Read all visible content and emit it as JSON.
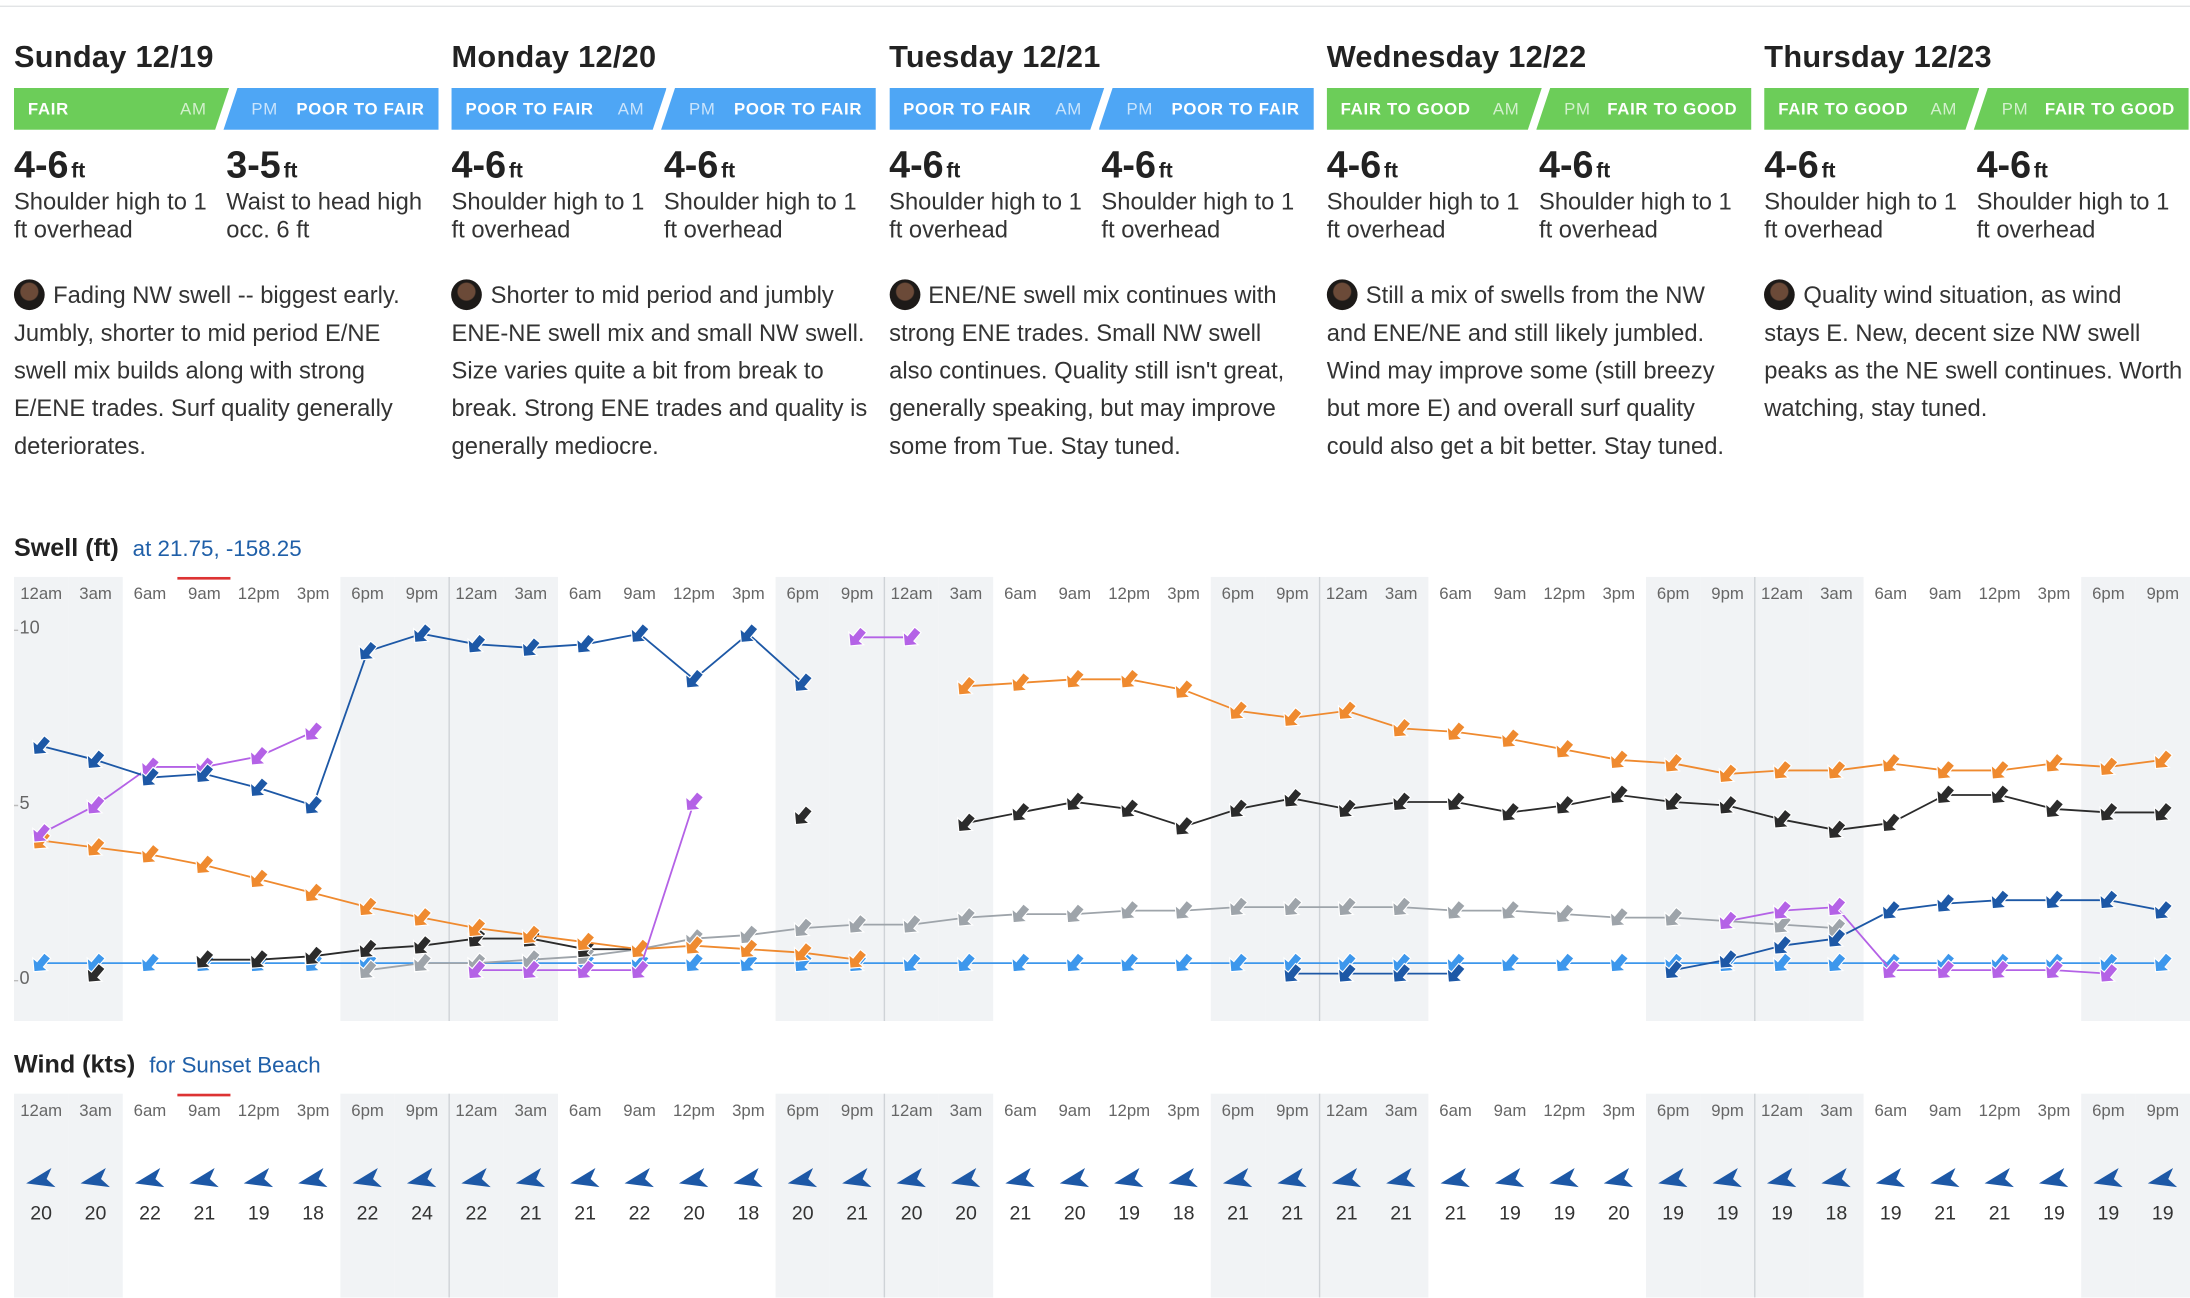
{
  "am_label": "AM",
  "pm_label": "PM",
  "unit": "ft",
  "days": [
    {
      "title": "Sunday 12/19",
      "am_rating": "FAIR",
      "am_color": "#6ccd59",
      "pm_rating": "POOR TO FAIR",
      "pm_color": "#4ea6f5",
      "am_height": "4-6",
      "am_desc": "Shoulder high to 1 ft overhead",
      "pm_height": "3-5",
      "pm_desc": "Waist to head high occ. 6 ft",
      "forecast": "Fading NW swell -- biggest early. Jumbly, shorter to mid period E/NE swell mix builds along with strong E/ENE trades. Surf quality generally deteriorates."
    },
    {
      "title": "Monday 12/20",
      "am_rating": "POOR TO FAIR",
      "am_color": "#4ea6f5",
      "pm_rating": "POOR TO FAIR",
      "pm_color": "#4ea6f5",
      "am_height": "4-6",
      "am_desc": "Shoulder high to 1 ft overhead",
      "pm_height": "4-6",
      "pm_desc": "Shoulder high to 1 ft overhead",
      "forecast": "Shorter to mid period and jumbly ENE-NE swell mix and small NW swell. Size varies quite a bit from break to break. Strong ENE trades and quality is generally mediocre."
    },
    {
      "title": "Tuesday 12/21",
      "am_rating": "POOR TO FAIR",
      "am_color": "#4ea6f5",
      "pm_rating": "POOR TO FAIR",
      "pm_color": "#4ea6f5",
      "am_height": "4-6",
      "am_desc": "Shoulder high to 1 ft overhead",
      "pm_height": "4-6",
      "pm_desc": "Shoulder high to 1 ft overhead",
      "forecast": "ENE/NE swell mix continues with strong ENE trades. Small NW swell also continues. Quality still isn't great, generally speaking, but may improve some from Tue. Stay tuned."
    },
    {
      "title": "Wednesday 12/22",
      "am_rating": "FAIR TO GOOD",
      "am_color": "#6ccd59",
      "pm_rating": "FAIR TO GOOD",
      "pm_color": "#6ccd59",
      "am_height": "4-6",
      "am_desc": "Shoulder high to 1 ft overhead",
      "pm_height": "4-6",
      "pm_desc": "Shoulder high to 1 ft overhead",
      "forecast": "Still a mix of swells from the NW and ENE/NE and still likely jumbled. Wind may improve some (still breezy but more E) and overall surf quality could also get a bit better. Stay tuned."
    },
    {
      "title": "Thursday 12/23",
      "am_rating": "FAIR TO GOOD",
      "am_color": "#6ccd59",
      "pm_rating": "FAIR TO GOOD",
      "pm_color": "#6ccd59",
      "am_height": "4-6",
      "am_desc": "Shoulder high to 1 ft overhead",
      "pm_height": "4-6",
      "pm_desc": "Shoulder high to 1 ft overhead",
      "forecast": "Quality wind situation, as wind stays E. New, decent size NW swell peaks as the NE swell continues. Worth watching, stay tuned."
    }
  ],
  "chart_data": [
    {
      "type": "line",
      "title": "Swell (ft)",
      "subtitle": "at 21.75, -158.25",
      "categories": [
        "12am",
        "3am",
        "6am",
        "9am",
        "12pm",
        "3pm",
        "6pm",
        "9pm",
        "12am",
        "3am",
        "6am",
        "9am",
        "12pm",
        "3pm",
        "6pm",
        "9pm",
        "12am",
        "3am",
        "6am",
        "9am",
        "12pm",
        "3pm",
        "6pm",
        "9pm",
        "12am",
        "3am",
        "6am",
        "9am",
        "12pm",
        "3pm",
        "6pm",
        "9pm",
        "12am",
        "3am",
        "6am",
        "9am",
        "12pm",
        "3pm",
        "6pm",
        "9pm"
      ],
      "ylim": [
        -1.15,
        10.45
      ],
      "yticks": [
        0,
        5,
        10
      ],
      "series": [
        {
          "color": "#3d97ec",
          "values": [
            0.5,
            0.5,
            0.5,
            0.5,
            0.5,
            0.5,
            0.5,
            0.5,
            0.5,
            0.5,
            0.5,
            0.5,
            0.5,
            0.5,
            0.5,
            0.5,
            0.5,
            0.5,
            0.5,
            0.5,
            0.5,
            0.5,
            0.5,
            0.5,
            0.5,
            0.5,
            0.5,
            0.5,
            0.5,
            0.5,
            0.5,
            0.5,
            0.5,
            0.5,
            0.5,
            0.5,
            0.5,
            0.5,
            0.5,
            0.5
          ]
        },
        {
          "color": "#9ea4aa",
          "values": [
            null,
            null,
            null,
            null,
            null,
            null,
            0.3,
            0.5,
            0.5,
            0.6,
            0.7,
            0.9,
            1.2,
            1.3,
            1.5,
            1.6,
            1.6,
            1.8,
            1.9,
            1.9,
            2.0,
            2.0,
            2.1,
            2.1,
            2.1,
            2.1,
            2.0,
            2.0,
            1.9,
            1.8,
            1.8,
            1.7,
            1.6,
            1.5,
            null,
            null,
            null,
            null,
            null,
            null
          ]
        },
        {
          "color": "#2b2b2b",
          "values": [
            null,
            0.2,
            null,
            0.6,
            0.6,
            0.7,
            0.9,
            1.0,
            1.2,
            1.2,
            0.9,
            0.9,
            null,
            null,
            4.7,
            null,
            null,
            4.5,
            4.8,
            5.1,
            4.9,
            4.4,
            4.9,
            5.2,
            4.9,
            5.1,
            5.1,
            4.8,
            5.0,
            5.3,
            5.1,
            5.0,
            4.6,
            4.3,
            4.5,
            5.3,
            5.3,
            4.9,
            4.8,
            4.8
          ]
        },
        {
          "color": "#ef8a2f",
          "values": [
            4.0,
            3.8,
            3.6,
            3.3,
            2.9,
            2.5,
            2.1,
            1.8,
            1.5,
            1.3,
            1.1,
            0.9,
            1.0,
            0.9,
            0.8,
            0.6,
            null,
            8.4,
            8.5,
            8.6,
            8.6,
            8.3,
            7.7,
            7.5,
            7.7,
            7.2,
            7.1,
            6.9,
            6.6,
            6.3,
            6.2,
            5.9,
            6.0,
            6.0,
            6.2,
            6.0,
            6.0,
            6.2,
            6.1,
            6.3
          ]
        },
        {
          "color": "#b462e6",
          "values": [
            4.2,
            5.0,
            6.1,
            6.1,
            6.4,
            7.1,
            null,
            null,
            0.3,
            0.3,
            0.3,
            0.3,
            5.1,
            null,
            null,
            9.8,
            9.8,
            null,
            null,
            null,
            null,
            null,
            null,
            null,
            null,
            null,
            null,
            null,
            null,
            null,
            null,
            1.7,
            2.0,
            2.1,
            0.3,
            0.3,
            0.3,
            0.3,
            0.2,
            null
          ]
        },
        {
          "color": "#1d58a6",
          "values": [
            6.7,
            6.3,
            5.8,
            5.9,
            5.5,
            5.0,
            9.4,
            9.9,
            9.6,
            9.5,
            9.6,
            9.9,
            8.6,
            9.9,
            8.5,
            null,
            null,
            null,
            null,
            null,
            null,
            null,
            null,
            0.2,
            0.2,
            0.2,
            0.2,
            null,
            null,
            null,
            0.3,
            0.6,
            1.0,
            1.2,
            2.0,
            2.2,
            2.3,
            2.3,
            2.3,
            2.0
          ]
        }
      ]
    },
    {
      "type": "arrow",
      "title": "Wind (kts)",
      "subtitle": "for Sunset Beach",
      "color": "#1d58a6",
      "categories": [
        "12am",
        "3am",
        "6am",
        "9am",
        "12pm",
        "3pm",
        "6pm",
        "9pm",
        "12am",
        "3am",
        "6am",
        "9am",
        "12pm",
        "3pm",
        "6pm",
        "9pm",
        "12am",
        "3am",
        "6am",
        "9am",
        "12pm",
        "3pm",
        "6pm",
        "9pm",
        "12am",
        "3am",
        "6am",
        "9am",
        "12pm",
        "3pm",
        "6pm",
        "9pm",
        "12am",
        "3am",
        "6am",
        "9am",
        "12pm",
        "3pm",
        "6pm",
        "9pm"
      ],
      "values": [
        20,
        20,
        22,
        21,
        19,
        18,
        22,
        24,
        22,
        21,
        21,
        22,
        20,
        18,
        20,
        21,
        20,
        20,
        21,
        20,
        19,
        18,
        21,
        21,
        21,
        21,
        21,
        19,
        19,
        20,
        19,
        19,
        19,
        18,
        19,
        21,
        21,
        19,
        19,
        19
      ]
    }
  ]
}
